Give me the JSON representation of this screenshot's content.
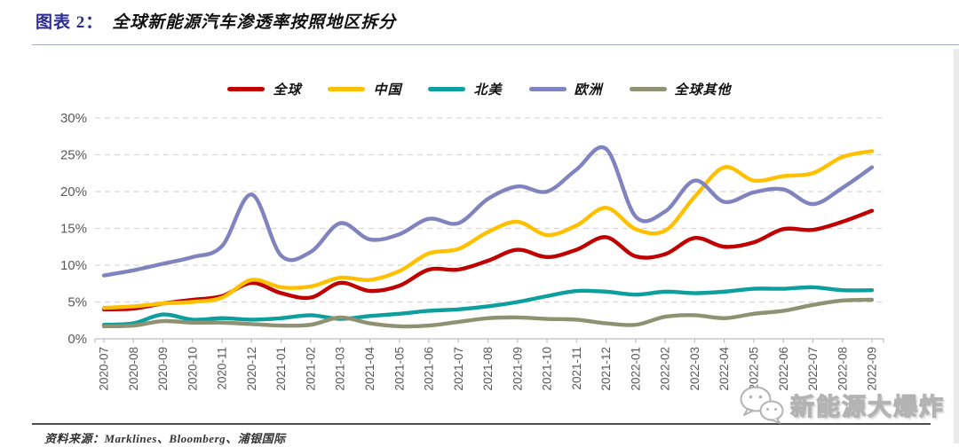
{
  "header": {
    "tag": "图表 2：",
    "title": "全球新能源汽车渗透率按照地区拆分"
  },
  "footer": {
    "source": "资料来源：Marklines、Bloomberg、浦银国际"
  },
  "watermark": {
    "icon": "wechat-bubbles-icon",
    "text": "新能源大爆炸"
  },
  "colors": {
    "tag_blue": "#2B2B94",
    "gridline": "#D8D8D8",
    "axis_line": "#BFBFBF",
    "axis_text": "#595959"
  },
  "chart_data": {
    "type": "line",
    "smooth": true,
    "title": "全球新能源汽车渗透率按照地区拆分",
    "xlabel": "",
    "ylabel": "",
    "ylim": [
      0,
      30
    ],
    "ytick_step": 5,
    "ytick_labels": [
      "0%",
      "5%",
      "10%",
      "15%",
      "20%",
      "25%",
      "30%"
    ],
    "grid": "horizontal-dashed",
    "legend_position": "top-center",
    "categories": [
      "2020-07",
      "2020-08",
      "2020-09",
      "2020-10",
      "2020-11",
      "2020-12",
      "2021-01",
      "2021-02",
      "2021-03",
      "2021-04",
      "2021-05",
      "2021-06",
      "2021-07",
      "2021-08",
      "2021-09",
      "2021-10",
      "2021-11",
      "2021-12",
      "2022-01",
      "2022-02",
      "2022-03",
      "2022-04",
      "2022-05",
      "2022-06",
      "2022-07",
      "2022-08",
      "2022-09"
    ],
    "series": [
      {
        "name": "全球",
        "color": "#C00000",
        "values": [
          4.0,
          4.1,
          4.8,
          5.3,
          5.8,
          7.6,
          6.2,
          5.6,
          7.6,
          6.5,
          7.2,
          9.4,
          9.4,
          10.6,
          12.1,
          11.1,
          12.1,
          13.8,
          11.2,
          11.5,
          13.7,
          12.5,
          13.1,
          14.9,
          14.8,
          15.9,
          17.4
        ]
      },
      {
        "name": "中国",
        "color": "#FFC000",
        "values": [
          4.2,
          4.4,
          4.8,
          5.0,
          5.6,
          8.0,
          7.0,
          7.1,
          8.3,
          8.0,
          9.2,
          11.6,
          12.2,
          14.5,
          15.9,
          14.1,
          15.4,
          17.8,
          14.9,
          14.7,
          19.3,
          23.3,
          21.5,
          22.1,
          22.5,
          24.7,
          25.5
        ]
      },
      {
        "name": "北美",
        "color": "#0D9E9E",
        "values": [
          1.9,
          2.1,
          3.3,
          2.6,
          2.8,
          2.6,
          2.8,
          3.2,
          2.7,
          3.1,
          3.4,
          3.8,
          4.0,
          4.4,
          5.0,
          5.8,
          6.5,
          6.4,
          6.0,
          6.4,
          6.2,
          6.4,
          6.8,
          6.8,
          7.0,
          6.6,
          6.6
        ]
      },
      {
        "name": "欧洲",
        "color": "#8083BE",
        "values": [
          8.6,
          9.3,
          10.2,
          11.1,
          12.6,
          19.6,
          11.3,
          11.8,
          15.7,
          13.5,
          14.2,
          16.3,
          15.7,
          19.0,
          20.7,
          20.0,
          23.0,
          25.8,
          16.6,
          17.3,
          21.5,
          18.6,
          19.9,
          20.3,
          18.3,
          20.5,
          23.3
        ]
      },
      {
        "name": "全球其他",
        "color": "#8E9272",
        "values": [
          1.7,
          1.8,
          2.4,
          2.2,
          2.2,
          2.0,
          1.8,
          1.9,
          2.9,
          2.1,
          1.7,
          1.8,
          2.3,
          2.8,
          2.9,
          2.7,
          2.6,
          2.1,
          1.9,
          3.0,
          3.2,
          2.8,
          3.4,
          3.8,
          4.6,
          5.2,
          5.3
        ]
      }
    ]
  }
}
